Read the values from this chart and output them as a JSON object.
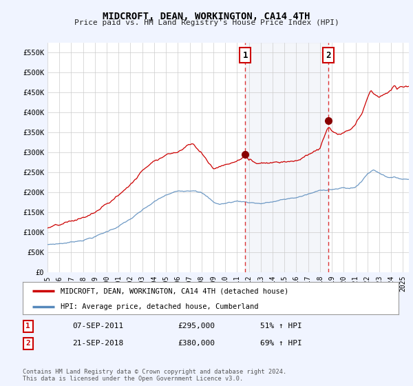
{
  "title": "MIDCROFT, DEAN, WORKINGTON, CA14 4TH",
  "subtitle": "Price paid vs. HM Land Registry's House Price Index (HPI)",
  "ylabel_ticks": [
    "£0",
    "£50K",
    "£100K",
    "£150K",
    "£200K",
    "£250K",
    "£300K",
    "£350K",
    "£400K",
    "£450K",
    "£500K",
    "£550K"
  ],
  "ytick_values": [
    0,
    50000,
    100000,
    150000,
    200000,
    250000,
    300000,
    350000,
    400000,
    450000,
    500000,
    550000
  ],
  "ylim": [
    0,
    575000
  ],
  "xmin": 1995.0,
  "xmax": 2025.5,
  "background_color": "#f0f4ff",
  "plot_bg_color": "#ffffff",
  "grid_color": "#cccccc",
  "red_color": "#cc0000",
  "blue_color": "#5588bb",
  "vline_color": "#dd3333",
  "annotation_box_color": "#cc0000",
  "transaction1_x": 2011.69,
  "transaction1_y": 295000,
  "transaction1_label": "1",
  "transaction1_date": "07-SEP-2011",
  "transaction1_price": "£295,000",
  "transaction1_hpi": "51% ↑ HPI",
  "transaction2_x": 2018.72,
  "transaction2_y": 380000,
  "transaction2_label": "2",
  "transaction2_date": "21-SEP-2018",
  "transaction2_price": "£380,000",
  "transaction2_hpi": "69% ↑ HPI",
  "legend_label_red": "MIDCROFT, DEAN, WORKINGTON, CA14 4TH (detached house)",
  "legend_label_blue": "HPI: Average price, detached house, Cumberland",
  "footer_text": "Contains HM Land Registry data © Crown copyright and database right 2024.\nThis data is licensed under the Open Government Licence v3.0.",
  "xticks": [
    1995,
    1996,
    1997,
    1998,
    1999,
    2000,
    2001,
    2002,
    2003,
    2004,
    2005,
    2006,
    2007,
    2008,
    2009,
    2010,
    2011,
    2012,
    2013,
    2014,
    2015,
    2016,
    2017,
    2018,
    2019,
    2020,
    2021,
    2022,
    2023,
    2024,
    2025
  ]
}
